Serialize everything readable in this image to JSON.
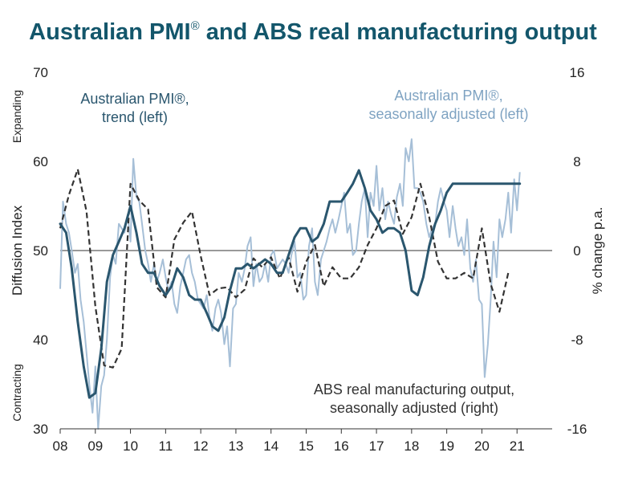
{
  "chart_data": {
    "type": "line",
    "title": "Australian PMI® and ABS real manufacturing output",
    "title_main": "Australian PMI",
    "title_sup": "®",
    "title_rest": " and ABS real manufacturing output",
    "ylabel_left": "Diffusion Index",
    "ylabel_right": "% change p.a.",
    "label_expanding": "Expanding",
    "label_contracting": "Contracting",
    "ylim_left": [
      30,
      70
    ],
    "ylim_right": [
      -16,
      16
    ],
    "xlim": [
      2008,
      2022
    ],
    "x_ticks": [
      "08",
      "09",
      "10",
      "11",
      "12",
      "13",
      "14",
      "15",
      "16",
      "17",
      "18",
      "19",
      "20",
      "21"
    ],
    "y_ticks_left": [
      "70",
      "60",
      "50",
      "40",
      "30"
    ],
    "y_ticks_right": [
      "16",
      "8",
      "0",
      "-8",
      "-16"
    ],
    "reference_line_left": 50,
    "colors": {
      "sa": "#a6bfd7",
      "trend": "#2a566e",
      "abs": "#333333",
      "title": "#13566b",
      "axis_text": "#222222"
    },
    "annotations": {
      "trend_line1": "Australian PMI®,",
      "trend_line2": "trend (left)",
      "sa_line1": "Australian PMI®,",
      "sa_line2": "seasonally adjusted (left)",
      "abs_line1": "ABS real manufacturing output,",
      "abs_line2": "seasonally adjusted (right)"
    },
    "series": [
      {
        "name": "Australian PMI®, seasonally adjusted (left)",
        "axis": "left",
        "style": "solid-thin",
        "x": [
          2008.0,
          2008.08,
          2008.17,
          2008.25,
          2008.33,
          2008.42,
          2008.5,
          2008.58,
          2008.67,
          2008.75,
          2008.83,
          2008.92,
          2009.0,
          2009.08,
          2009.17,
          2009.25,
          2009.33,
          2009.42,
          2009.5,
          2009.58,
          2009.67,
          2009.75,
          2009.83,
          2009.92,
          2010.0,
          2010.08,
          2010.17,
          2010.25,
          2010.33,
          2010.42,
          2010.5,
          2010.58,
          2010.67,
          2010.75,
          2010.83,
          2010.92,
          2011.0,
          2011.08,
          2011.17,
          2011.25,
          2011.33,
          2011.42,
          2011.5,
          2011.58,
          2011.67,
          2011.75,
          2011.83,
          2011.92,
          2012.0,
          2012.08,
          2012.17,
          2012.25,
          2012.33,
          2012.42,
          2012.5,
          2012.58,
          2012.67,
          2012.75,
          2012.83,
          2012.92,
          2013.0,
          2013.08,
          2013.17,
          2013.25,
          2013.33,
          2013.42,
          2013.5,
          2013.58,
          2013.67,
          2013.75,
          2013.83,
          2013.92,
          2014.0,
          2014.08,
          2014.17,
          2014.25,
          2014.33,
          2014.42,
          2014.5,
          2014.58,
          2014.67,
          2014.75,
          2014.83,
          2014.92,
          2015.0,
          2015.08,
          2015.17,
          2015.25,
          2015.33,
          2015.42,
          2015.5,
          2015.58,
          2015.67,
          2015.75,
          2015.83,
          2015.92,
          2016.0,
          2016.08,
          2016.17,
          2016.25,
          2016.33,
          2016.42,
          2016.5,
          2016.58,
          2016.67,
          2016.75,
          2016.83,
          2016.92,
          2017.0,
          2017.08,
          2017.17,
          2017.25,
          2017.33,
          2017.42,
          2017.5,
          2017.58,
          2017.67,
          2017.75,
          2017.83,
          2017.92,
          2018.0,
          2018.08,
          2018.17,
          2018.25,
          2018.33,
          2018.42,
          2018.5,
          2018.58,
          2018.67,
          2018.75,
          2018.83,
          2018.92,
          2019.0,
          2019.08,
          2019.17,
          2019.25,
          2019.33,
          2019.42,
          2019.5,
          2019.58,
          2019.67,
          2019.75,
          2019.83,
          2019.92,
          2020.0,
          2020.08,
          2020.17,
          2020.25,
          2020.33,
          2020.42,
          2020.5,
          2020.58,
          2020.67,
          2020.75,
          2020.83,
          2020.92,
          2021.0,
          2021.08
        ],
        "values": [
          45.7,
          55.5,
          53.0,
          52.0,
          50.0,
          47.5,
          48.5,
          44.5,
          42.0,
          38.5,
          35.0,
          31.8,
          37.0,
          30.0,
          34.8,
          36.0,
          40.0,
          47.0,
          49.5,
          48.5,
          53.0,
          52.5,
          52.0,
          54.0,
          51.0,
          60.3,
          56.0,
          55.5,
          53.0,
          50.0,
          48.5,
          46.5,
          48.5,
          46.5,
          47.5,
          49.0,
          47.0,
          45.5,
          46.5,
          44.0,
          43.0,
          46.0,
          47.5,
          49.0,
          49.5,
          47.5,
          46.5,
          44.5,
          44.0,
          43.5,
          45.0,
          42.5,
          41.0,
          43.5,
          44.5,
          43.0,
          39.5,
          41.5,
          37.0,
          43.5,
          44.0,
          47.5,
          46.5,
          48.0,
          50.5,
          51.5,
          46.0,
          48.5,
          46.5,
          47.0,
          48.5,
          46.5,
          49.5,
          50.0,
          48.0,
          48.5,
          49.0,
          48.5,
          47.5,
          49.5,
          51.0,
          47.0,
          47.5,
          44.5,
          45.0,
          50.5,
          52.5,
          46.5,
          45.0,
          49.0,
          50.0,
          51.0,
          52.5,
          53.5,
          52.0,
          53.5,
          55.0,
          56.5,
          52.0,
          53.0,
          49.5,
          50.0,
          53.0,
          55.5,
          57.0,
          51.5,
          56.5,
          55.0,
          59.5,
          54.5,
          57.0,
          53.5,
          55.5,
          54.0,
          53.0,
          56.0,
          57.5,
          55.0,
          61.5,
          60.0,
          62.5,
          57.0,
          57.0,
          56.5,
          55.5,
          53.0,
          51.5,
          52.5,
          53.0,
          55.5,
          57.0,
          55.5,
          54.5,
          51.5,
          55.0,
          52.5,
          50.5,
          51.5,
          49.5,
          53.5,
          48.0,
          46.5,
          49.0,
          44.5,
          44.0,
          35.8,
          39.5,
          44.5,
          51.0,
          47.0,
          53.5,
          51.5,
          53.5,
          56.5,
          52.0,
          58.0,
          54.5,
          58.8
        ]
      },
      {
        "name": "Australian PMI®, trend (left)",
        "axis": "left",
        "style": "solid-thick",
        "x": [
          2008.0,
          2008.17,
          2008.33,
          2008.5,
          2008.67,
          2008.83,
          2009.0,
          2009.17,
          2009.33,
          2009.5,
          2009.67,
          2009.83,
          2010.0,
          2010.17,
          2010.33,
          2010.5,
          2010.67,
          2010.83,
          2011.0,
          2011.17,
          2011.33,
          2011.5,
          2011.67,
          2011.83,
          2012.0,
          2012.17,
          2012.33,
          2012.5,
          2012.67,
          2012.83,
          2013.0,
          2013.17,
          2013.33,
          2013.5,
          2013.67,
          2013.83,
          2014.0,
          2014.17,
          2014.33,
          2014.5,
          2014.67,
          2014.83,
          2015.0,
          2015.17,
          2015.33,
          2015.5,
          2015.67,
          2015.83,
          2016.0,
          2016.17,
          2016.33,
          2016.5,
          2016.67,
          2016.83,
          2017.0,
          2017.17,
          2017.33,
          2017.5,
          2017.67,
          2017.83,
          2018.0,
          2018.17,
          2018.33,
          2018.5,
          2018.67,
          2018.83,
          2019.0,
          2019.17,
          2019.33,
          2019.5,
          2019.67,
          2019.83,
          2020.0,
          2020.17,
          2020.33,
          2020.5,
          2020.67,
          2020.83,
          2021.0,
          2021.08
        ],
        "values": [
          53.0,
          52.0,
          48.0,
          42.0,
          37.0,
          33.5,
          34.0,
          39.0,
          46.5,
          49.5,
          51.0,
          52.5,
          55.0,
          52.0,
          48.5,
          47.5,
          47.5,
          46.0,
          45.0,
          46.0,
          48.0,
          47.0,
          45.0,
          44.5,
          44.5,
          43.0,
          41.5,
          41.0,
          42.5,
          45.5,
          48.0,
          48.0,
          48.5,
          48.0,
          48.5,
          49.0,
          48.5,
          47.5,
          47.5,
          49.5,
          51.5,
          52.5,
          52.5,
          51.0,
          51.5,
          53.0,
          55.5,
          55.5,
          55.5,
          56.5,
          57.5,
          59.0,
          57.0,
          54.5,
          53.5,
          52.0,
          52.5,
          52.5,
          52.0,
          50.0,
          45.5,
          45.0,
          47.0,
          50.5,
          53.0,
          54.5,
          56.5,
          57.5,
          57.5,
          57.5,
          57.5,
          57.5,
          57.5,
          57.5,
          57.5,
          57.5,
          57.5,
          57.5,
          57.5,
          57.5
        ]
      },
      {
        "name": "ABS real manufacturing output, seasonally adjusted (right)",
        "axis": "right",
        "style": "dashed",
        "x": [
          2008.0,
          2008.25,
          2008.5,
          2008.75,
          2009.0,
          2009.25,
          2009.5,
          2009.75,
          2010.0,
          2010.25,
          2010.5,
          2010.75,
          2011.0,
          2011.25,
          2011.5,
          2011.75,
          2012.0,
          2012.25,
          2012.5,
          2012.75,
          2013.0,
          2013.25,
          2013.5,
          2013.75,
          2014.0,
          2014.25,
          2014.5,
          2014.75,
          2015.0,
          2015.25,
          2015.5,
          2015.75,
          2016.0,
          2016.25,
          2016.5,
          2016.75,
          2017.0,
          2017.25,
          2017.5,
          2017.75,
          2018.0,
          2018.25,
          2018.5,
          2018.75,
          2019.0,
          2019.25,
          2019.5,
          2019.75,
          2020.0,
          2020.25,
          2020.5,
          2020.75
        ],
        "values": [
          2.0,
          5.0,
          7.3,
          3.5,
          -5.0,
          -10.3,
          -10.5,
          -8.8,
          6.0,
          4.5,
          3.7,
          -3.3,
          -4.2,
          1.0,
          2.5,
          3.5,
          -0.5,
          -4.0,
          -3.4,
          -3.3,
          -4.2,
          -3.5,
          -0.7,
          -1.5,
          -0.6,
          -2.5,
          -0.6,
          -3.7,
          -1.0,
          0.5,
          -3.2,
          -1.5,
          -2.5,
          -2.5,
          -1.5,
          0.5,
          2.0,
          4.0,
          4.5,
          1.5,
          3.0,
          6.0,
          3.0,
          -1.0,
          -2.5,
          -2.5,
          -2.0,
          -2.5,
          2.0,
          -3.0,
          -5.5,
          -2.0
        ]
      }
    ]
  }
}
